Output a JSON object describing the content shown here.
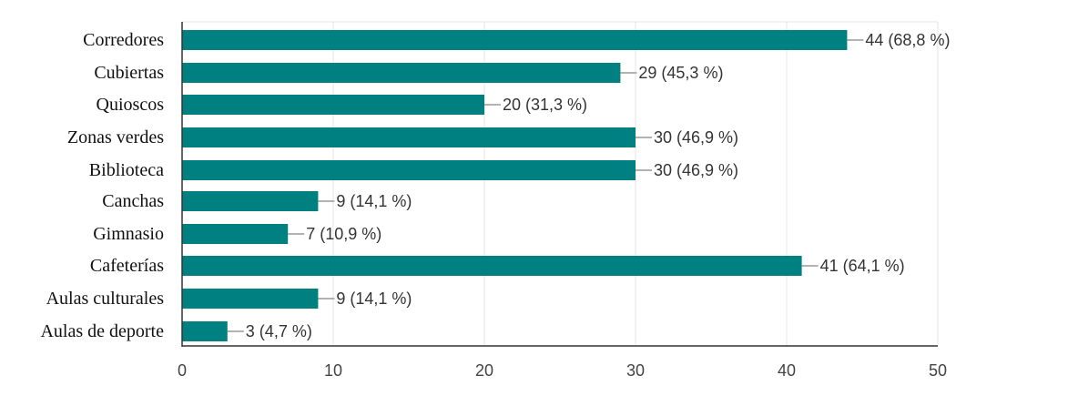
{
  "chart_data": {
    "type": "bar",
    "orientation": "horizontal",
    "categories": [
      "Corredores",
      "Cubiertas",
      "Quioscos",
      "Zonas verdes",
      "Biblioteca",
      "Canchas",
      "Gimnasio",
      "Cafeterías",
      "Aulas culturales",
      "Aulas de deporte"
    ],
    "values": [
      44,
      29,
      20,
      30,
      30,
      9,
      7,
      41,
      9,
      3
    ],
    "value_labels": [
      "44 (68,8 %)",
      "29 (45,3 %)",
      "20 (31,3 %)",
      "30 (46,9 %)",
      "30 (46,9 %)",
      "9 (14,1 %)",
      "7 (10,9 %)",
      "41 (64,1 %)",
      "9 (14,1 %)",
      "3 (4,7 %)"
    ],
    "x_ticks": [
      "0",
      "10",
      "20",
      "30",
      "40",
      "50"
    ],
    "xlim": [
      0,
      50
    ],
    "grid": true,
    "legend": "none",
    "title": "",
    "xlabel": "",
    "ylabel": "",
    "colors": {
      "bar": "#008080",
      "grid": "#e6e6e6",
      "axis": "#333333",
      "connector": "#999999"
    }
  }
}
